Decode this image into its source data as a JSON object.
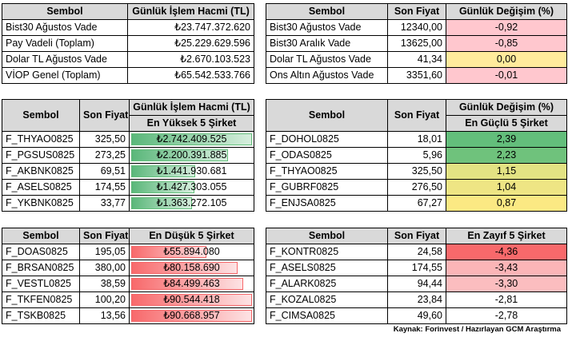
{
  "t1": {
    "headers": [
      "Sembol",
      "Günlük İşlem Hacmi (TL)"
    ],
    "rows": [
      {
        "name": "Bist30 Ağustos Vade",
        "value": "₺23.747.372.620"
      },
      {
        "name": "Pay Vadeli (Toplam)",
        "value": "₺25.229.629.596"
      },
      {
        "name": "Dolar TL Ağustos Vade",
        "value": "₺2.670.103.523"
      },
      {
        "name": "VİOP Genel (Toplam)",
        "value": "₺65.542.533.766"
      }
    ]
  },
  "t2": {
    "headers": [
      "Sembol",
      "Son Fiyat",
      "Günlük Değişim (%)"
    ],
    "rows": [
      {
        "name": "Bist30 Ağustos Vade",
        "price": "12340,00",
        "change": "-0,92",
        "color": "#ffc7ce"
      },
      {
        "name": "Bist30 Aralık Vade",
        "price": "13625,00",
        "change": "-0,85",
        "color": "#ffc7ce"
      },
      {
        "name": "Dolar TL Ağustos Vade",
        "price": "41,34",
        "change": "0,00",
        "color": "#ffeb9c"
      },
      {
        "name": "Ons Altın Ağustos Vade",
        "price": "3351,60",
        "change": "-0,01",
        "color": "#ffc7ce"
      }
    ]
  },
  "t3": {
    "headers": [
      "Sembol",
      "Son Fiyat",
      "Günlük İşlem Hacmi (TL)"
    ],
    "subheader": "En Yüksek 5 Şirket",
    "rows": [
      {
        "name": "F_THYAO0825",
        "price": "325,50",
        "volume": "₺2.742.409.525",
        "fill": 1.0
      },
      {
        "name": "F_PGSUS0825",
        "price": "273,25",
        "volume": "₺2.200.391.885",
        "fill": 0.8
      },
      {
        "name": "F_AKBNK0825",
        "price": "69,51",
        "volume": "₺1.441.930.681",
        "fill": 0.53
      },
      {
        "name": "F_ASELS0825",
        "price": "174,55",
        "volume": "₺1.427.303.055",
        "fill": 0.52
      },
      {
        "name": "F_YKBNK0825",
        "price": "33,77",
        "volume": "₺1.363.272.105",
        "fill": 0.5
      }
    ]
  },
  "t4": {
    "headers": [
      "Sembol",
      "Son Fiyat",
      "Günlük Değişim (%)"
    ],
    "subheader": "En Güçlü 5 Şirket",
    "rows": [
      {
        "name": "F_DOHOL0825",
        "price": "18,01",
        "change": "2,39",
        "color": "#63be7b"
      },
      {
        "name": "F_ODAS0825",
        "price": "5,96",
        "change": "2,23",
        "color": "#6fc27c"
      },
      {
        "name": "F_THYAO0825",
        "price": "325,50",
        "change": "1,15",
        "color": "#e3e383"
      },
      {
        "name": "F_GUBRF0825",
        "price": "276,50",
        "change": "1,04",
        "color": "#eee584"
      },
      {
        "name": "F_ENJSA0825",
        "price": "67,27",
        "change": "0,87",
        "color": "#fbe983"
      }
    ]
  },
  "t5": {
    "headers": [
      "Sembol",
      "Son Fiyat",
      "En Düşük 5 Şirket"
    ],
    "rows": [
      {
        "name": "F_DOAS0825",
        "price": "195,05",
        "volume": "₺55.894.080",
        "fill": 0.62
      },
      {
        "name": "F_BRSAN0825",
        "price": "380,00",
        "volume": "₺80.158.690",
        "fill": 0.88
      },
      {
        "name": "F_VESTL0825",
        "price": "38,59",
        "volume": "₺84.499.463",
        "fill": 0.93
      },
      {
        "name": "F_TKFEN0825",
        "price": "100,20",
        "volume": "₺90.544.418",
        "fill": 1.0
      },
      {
        "name": "F_TSKB0825",
        "price": "13,56",
        "volume": "₺90.668.957",
        "fill": 1.0
      }
    ]
  },
  "t6": {
    "headers": [
      "Sembol",
      "Son Fiyat",
      "En Zayıf 5 Şirket"
    ],
    "rows": [
      {
        "name": "F_KONTR0825",
        "price": "24,58",
        "change": "-4,36",
        "color": "#f8696b"
      },
      {
        "name": "F_ASELS0825",
        "price": "174,55",
        "change": "-3,43",
        "color": "#fbb5b7"
      },
      {
        "name": "F_ALARK0825",
        "price": "94,44",
        "change": "-3,30",
        "color": "#fbbdbf"
      },
      {
        "name": "F_KOZAL0825",
        "price": "23,84",
        "change": "-2,81",
        "color": "#ffffff"
      },
      {
        "name": "F_CIMSA0825",
        "price": "49,60",
        "change": "-2,78",
        "color": "#ffffff"
      }
    ]
  },
  "source": "Kaynak: Forinvest / Hazırlayan GCM Araştırma"
}
